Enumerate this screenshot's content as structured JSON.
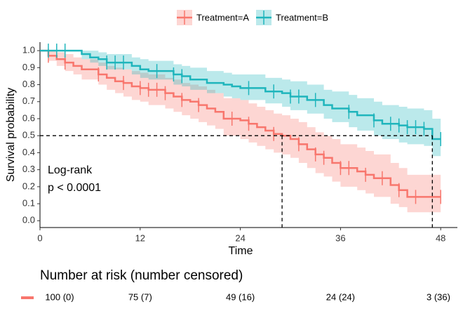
{
  "chart_data": {
    "type": "survival",
    "x_label": "Time",
    "y_label": "Survival probability",
    "annotation": [
      "Log-rank",
      "p < 0.0001"
    ],
    "xlim": [
      0,
      50
    ],
    "ylim": [
      -0.04,
      1.05
    ],
    "xticks": [
      0,
      12,
      24,
      36,
      48
    ],
    "yticks": [
      {
        "value": 0,
        "label": "0.0"
      },
      {
        "value": 0.1,
        "label": "0.1"
      },
      {
        "value": 0.2,
        "label": "0.2"
      },
      {
        "value": 0.3,
        "label": "0.3"
      },
      {
        "value": 0.4,
        "label": "0.4"
      },
      {
        "value": 0.5,
        "label": "0.5"
      },
      {
        "value": 0.6,
        "label": "0.6"
      },
      {
        "value": 0.7,
        "label": "0.7"
      },
      {
        "value": 0.8,
        "label": "0.8"
      },
      {
        "value": 0.9,
        "label": "0.9"
      },
      {
        "value": 1,
        "label": "1.0"
      }
    ],
    "median_line": {
      "y": 0.5,
      "x": [
        29,
        47
      ]
    },
    "series": [
      {
        "name": "Treatment=A",
        "color": "#F8766D",
        "x": [
          0,
          1,
          2,
          3,
          4,
          5,
          7,
          8,
          9,
          10,
          11,
          12,
          13,
          15,
          16,
          17,
          18,
          19,
          20,
          21,
          22,
          24,
          25,
          26,
          27,
          28,
          29,
          30,
          31,
          32,
          33,
          34,
          35,
          36,
          38,
          39,
          40,
          42,
          43,
          44,
          48
        ],
        "values": [
          1.0,
          0.97,
          0.95,
          0.93,
          0.91,
          0.89,
          0.86,
          0.84,
          0.82,
          0.81,
          0.79,
          0.78,
          0.77,
          0.75,
          0.73,
          0.71,
          0.7,
          0.68,
          0.66,
          0.64,
          0.6,
          0.59,
          0.57,
          0.55,
          0.53,
          0.51,
          0.5,
          0.48,
          0.45,
          0.42,
          0.39,
          0.37,
          0.34,
          0.31,
          0.29,
          0.27,
          0.25,
          0.21,
          0.18,
          0.14,
          0.14
        ],
        "lower": [
          1.0,
          0.94,
          0.91,
          0.88,
          0.86,
          0.83,
          0.8,
          0.77,
          0.75,
          0.73,
          0.71,
          0.7,
          0.68,
          0.66,
          0.64,
          0.62,
          0.6,
          0.58,
          0.56,
          0.54,
          0.5,
          0.48,
          0.46,
          0.44,
          0.42,
          0.4,
          0.39,
          0.37,
          0.34,
          0.31,
          0.28,
          0.26,
          0.23,
          0.2,
          0.18,
          0.16,
          0.14,
          0.1,
          0.08,
          0.05,
          0.05
        ],
        "upper": [
          1.0,
          1.0,
          0.99,
          0.98,
          0.96,
          0.95,
          0.93,
          0.91,
          0.9,
          0.89,
          0.88,
          0.87,
          0.86,
          0.84,
          0.83,
          0.81,
          0.8,
          0.79,
          0.77,
          0.75,
          0.72,
          0.71,
          0.69,
          0.67,
          0.65,
          0.63,
          0.62,
          0.6,
          0.58,
          0.55,
          0.52,
          0.5,
          0.48,
          0.45,
          0.43,
          0.41,
          0.39,
          0.34,
          0.31,
          0.27,
          0.27
        ],
        "censored_x": [
          1,
          3,
          7,
          10,
          12,
          13,
          14,
          15,
          17,
          19,
          23,
          25,
          28,
          31,
          33,
          34,
          36,
          37,
          39,
          41,
          43,
          45,
          48
        ]
      },
      {
        "name": "Treatment=B",
        "color": "#1FB5BC",
        "x": [
          0,
          5,
          6,
          7,
          8,
          11,
          12,
          13,
          16,
          17,
          18,
          20,
          22,
          23,
          24,
          27,
          29,
          30,
          32,
          34,
          35,
          37,
          38,
          40,
          41,
          43,
          44,
          46,
          47,
          48
        ],
        "values": [
          1.0,
          0.98,
          0.96,
          0.95,
          0.93,
          0.91,
          0.89,
          0.88,
          0.86,
          0.85,
          0.83,
          0.81,
          0.8,
          0.79,
          0.78,
          0.76,
          0.75,
          0.73,
          0.71,
          0.68,
          0.66,
          0.64,
          0.62,
          0.59,
          0.57,
          0.56,
          0.55,
          0.54,
          0.48,
          0.48
        ],
        "lower": [
          1.0,
          0.95,
          0.93,
          0.91,
          0.89,
          0.86,
          0.84,
          0.83,
          0.8,
          0.79,
          0.77,
          0.75,
          0.73,
          0.72,
          0.71,
          0.69,
          0.67,
          0.65,
          0.63,
          0.6,
          0.58,
          0.55,
          0.53,
          0.5,
          0.48,
          0.46,
          0.45,
          0.44,
          0.38,
          0.38
        ],
        "upper": [
          1.0,
          1.0,
          1.0,
          0.99,
          0.98,
          0.96,
          0.95,
          0.94,
          0.92,
          0.91,
          0.9,
          0.88,
          0.87,
          0.86,
          0.86,
          0.84,
          0.83,
          0.82,
          0.8,
          0.77,
          0.76,
          0.74,
          0.72,
          0.7,
          0.68,
          0.67,
          0.66,
          0.65,
          0.6,
          0.6
        ],
        "censored_x": [
          1,
          2,
          3,
          8,
          9,
          10,
          14,
          16,
          17,
          25,
          28,
          30,
          31,
          33,
          37,
          40,
          42,
          43,
          44,
          45,
          46,
          48
        ]
      }
    ],
    "risk_table": {
      "title": "Number at risk (number censored)",
      "values": [
        100,
        75,
        49,
        24,
        3
      ],
      "censored": [
        0,
        7,
        16,
        24,
        36
      ],
      "value_labels": [
        "100 (0)",
        "75 (7)",
        "49 (16)",
        "24 (24)",
        "3 (36)"
      ]
    }
  }
}
